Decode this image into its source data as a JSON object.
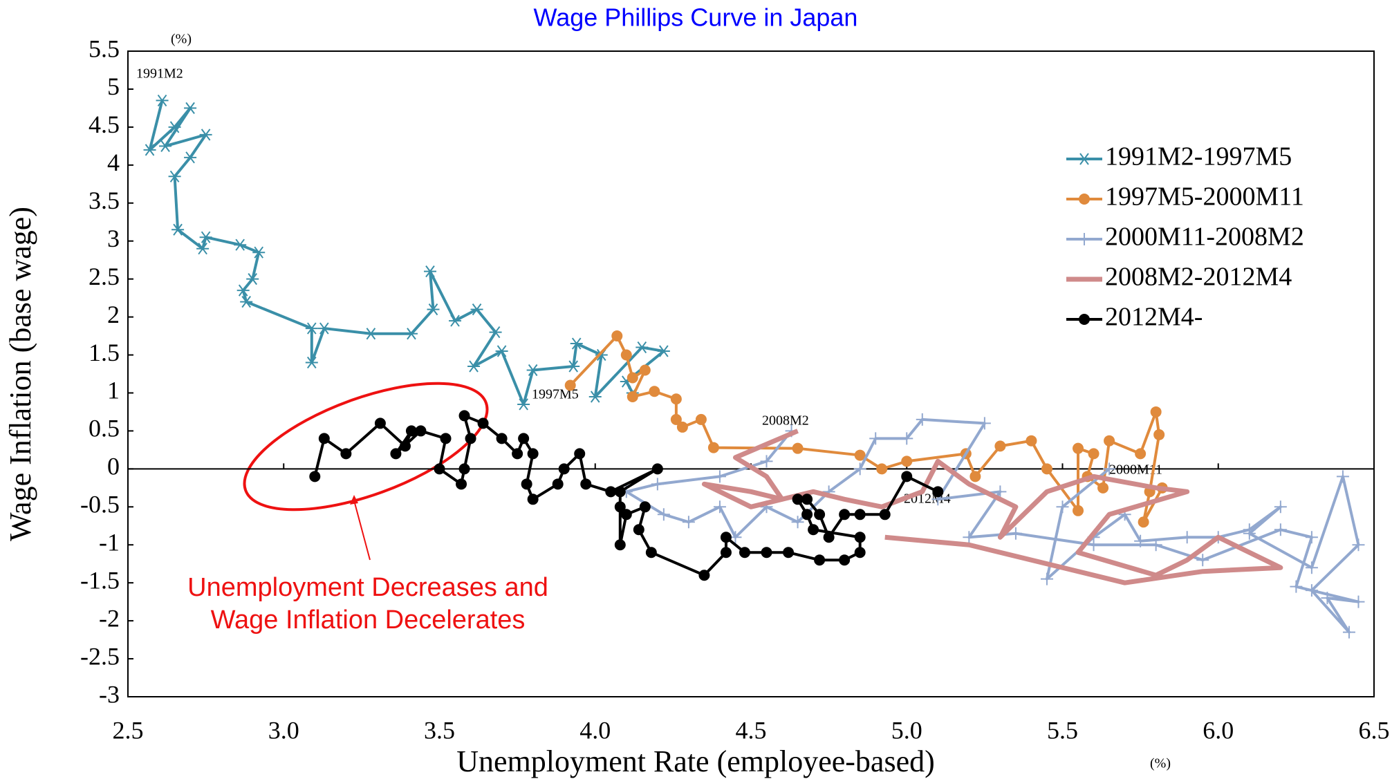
{
  "chart_data": {
    "type": "line",
    "title": "Wage Phillips Curve in Japan",
    "x_label": "Unemployment Rate (employee-based)",
    "y_label": "Wage Inflation (base wage)",
    "x_unit": "(%)",
    "y_unit": "(%)",
    "point_labels": [
      "1991M2",
      "1997M5",
      "2008M2",
      "2000M11",
      "2012M4"
    ],
    "annotation": [
      "Unemployment Decreases and",
      "Wage Inflation Decelerates"
    ],
    "xlim": [
      2.5,
      6.5
    ],
    "ylim": [
      -3,
      5.5
    ],
    "xticks": [
      2.5,
      {
        "value": 3,
        "label": "3.0"
      },
      3.5,
      {
        "value": 4,
        "label": "4.0"
      },
      4.5,
      {
        "value": 5,
        "label": "5.0"
      },
      5.5,
      {
        "value": 6,
        "label": "6.0"
      },
      6.5
    ],
    "yticks": [
      -3,
      -2.5,
      -2,
      -1.5,
      -1,
      -0.5,
      0,
      0.5,
      1,
      1.5,
      2,
      2.5,
      3,
      3.5,
      4,
      4.5,
      5,
      5.5
    ],
    "series": [
      {
        "name": "1991M2-1997M5",
        "color": "#3a8fa8",
        "marker": "star",
        "x": [
          2.61,
          2.57,
          2.65,
          2.7,
          2.62,
          2.75,
          2.7,
          2.65,
          2.66,
          2.74,
          2.75,
          2.86,
          2.92,
          2.9,
          2.87,
          2.88,
          3.09,
          3.09,
          3.13,
          3.28,
          3.41,
          3.48,
          3.47,
          3.55,
          3.62,
          3.68,
          3.61,
          3.7,
          3.77,
          3.8,
          3.93,
          3.94,
          4.02,
          4.0,
          4.15,
          4.22,
          4.1,
          4.12
        ],
        "values": [
          4.85,
          4.2,
          4.5,
          4.75,
          4.25,
          4.4,
          4.1,
          3.85,
          3.15,
          2.9,
          3.05,
          2.95,
          2.85,
          2.5,
          2.35,
          2.2,
          1.85,
          1.4,
          1.85,
          1.78,
          1.78,
          2.1,
          2.6,
          1.95,
          2.1,
          1.8,
          1.35,
          1.55,
          0.85,
          1.3,
          1.35,
          1.65,
          1.5,
          0.95,
          1.6,
          1.55,
          1.15,
          1.0
        ]
      },
      {
        "name": "1997M5-2000M11",
        "color": "#e08a3c",
        "marker": "circle",
        "x": [
          3.92,
          4.07,
          4.1,
          4.12,
          4.16,
          4.12,
          4.19,
          4.26,
          4.26,
          4.28,
          4.34,
          4.38,
          4.65,
          4.85,
          4.92,
          5.0,
          5.19,
          5.22,
          5.3,
          5.4,
          5.45,
          5.55,
          5.55,
          5.6,
          5.58,
          5.63,
          5.65,
          5.75,
          5.8,
          5.81,
          5.78,
          5.76,
          5.82
        ],
        "values": [
          1.1,
          1.75,
          1.5,
          1.2,
          1.3,
          0.95,
          1.02,
          0.92,
          0.65,
          0.55,
          0.65,
          0.28,
          0.27,
          0.18,
          0,
          0.1,
          0.2,
          -0.1,
          0.3,
          0.37,
          0,
          -0.55,
          0.27,
          0.2,
          -0.1,
          -0.25,
          0.37,
          0.2,
          0.75,
          0.45,
          -0.3,
          -0.7,
          -0.25
        ]
      },
      {
        "name": "2000M11-2008M2",
        "color": "#92a8cf",
        "marker": "plus",
        "x": [
          5.65,
          5.5,
          5.45,
          5.6,
          5.7,
          5.75,
          5.9,
          6.0,
          6.1,
          6.2,
          6.1,
          6.3,
          6.4,
          6.45,
          6.3,
          6.42,
          6.35,
          6.45,
          6.25,
          6.3,
          6.2,
          5.95,
          5.8,
          5.6,
          5.35,
          5.2,
          5.3,
          5.1,
          5.25,
          5.05,
          5.0,
          4.9,
          4.85,
          4.75,
          4.65,
          4.55,
          4.45,
          4.4,
          4.3,
          4.22,
          4.1,
          4.2,
          4.4,
          4.55,
          4.63
        ],
        "values": [
          0,
          -0.5,
          -1.45,
          -0.9,
          -0.6,
          -0.95,
          -0.9,
          -0.9,
          -0.8,
          -0.5,
          -0.85,
          -1.3,
          -0.1,
          -1.0,
          -1.6,
          -2.15,
          -1.7,
          -1.75,
          -1.55,
          -0.9,
          -0.8,
          -1.2,
          -1.0,
          -1.0,
          -0.85,
          -0.9,
          -0.3,
          -0.4,
          0.6,
          0.65,
          0.4,
          0.4,
          0,
          -0.3,
          -0.7,
          -0.5,
          -0.9,
          -0.5,
          -0.7,
          -0.6,
          -0.3,
          -0.2,
          -0.1,
          0.1,
          0.5
        ]
      },
      {
        "name": "2008M2-2012M4",
        "color": "#cf8a8a",
        "marker": "none",
        "x": [
          4.65,
          4.45,
          4.55,
          4.6,
          4.5,
          4.35,
          4.5,
          4.7,
          4.8,
          4.92,
          5.05,
          5.1,
          5.2,
          5.35,
          5.3,
          5.45,
          5.6,
          5.8,
          5.9,
          5.65,
          5.55,
          5.8,
          5.9,
          6.0,
          6.2,
          5.95,
          5.7,
          5.45,
          5.2,
          4.93
        ],
        "values": [
          0.5,
          0.15,
          -0.1,
          -0.4,
          -0.3,
          -0.2,
          -0.5,
          -0.3,
          -0.4,
          -0.5,
          -0.3,
          0.1,
          -0.2,
          -0.5,
          -0.9,
          -0.3,
          -0.1,
          -0.25,
          -0.3,
          -0.6,
          -1.1,
          -1.4,
          -1.2,
          -0.9,
          -1.3,
          -1.35,
          -1.5,
          -1.25,
          -1.0,
          -0.9
        ]
      },
      {
        "name": "2012M4-",
        "color": "#000000",
        "marker": "circle",
        "x": [
          5.1,
          5.0,
          4.93,
          4.85,
          4.8,
          4.75,
          4.72,
          4.68,
          4.65,
          4.68,
          4.7,
          4.85,
          4.85,
          4.8,
          4.72,
          4.62,
          4.55,
          4.48,
          4.42,
          4.42,
          4.35,
          4.18,
          4.14,
          4.16,
          4.1,
          4.08,
          4.08,
          4.08,
          4.2,
          4.05,
          3.97,
          3.95,
          3.9,
          3.88,
          3.8,
          3.78,
          3.8,
          3.77,
          3.75,
          3.7,
          3.64,
          3.58,
          3.6,
          3.58,
          3.57,
          3.5,
          3.52,
          3.44,
          3.36,
          3.41,
          3.39,
          3.31,
          3.2,
          3.13,
          3.1
        ],
        "values": [
          -0.3,
          -0.1,
          -0.6,
          -0.6,
          -0.6,
          -0.9,
          -0.6,
          -0.4,
          -0.4,
          -0.6,
          -0.8,
          -0.9,
          -1.1,
          -1.2,
          -1.2,
          -1.1,
          -1.1,
          -1.1,
          -0.9,
          -1.1,
          -1.4,
          -1.1,
          -0.8,
          -0.5,
          -0.6,
          -1.0,
          -0.5,
          -0.3,
          0.0,
          -0.3,
          -0.2,
          0.2,
          0.0,
          -0.2,
          -0.4,
          -0.2,
          0.2,
          0.4,
          0.2,
          0.4,
          0.6,
          0.7,
          0.4,
          0.0,
          -0.2,
          0.0,
          0.4,
          0.5,
          0.2,
          0.5,
          0.3,
          0.6,
          0.2,
          0.4,
          -0.1
        ]
      }
    ]
  }
}
